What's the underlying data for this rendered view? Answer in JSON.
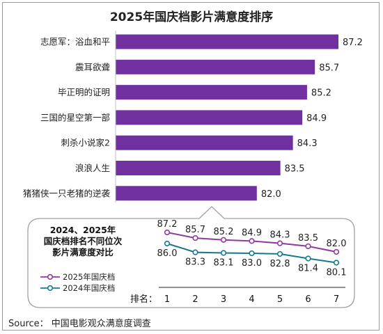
{
  "title": "2025年国庆档影片满意度排序",
  "source": "Source：  中国电影观众满意度调查",
  "colors": {
    "bar": "#7030a0",
    "series_2025": "#8b3a9e",
    "series_2024": "#137a8c",
    "callout_border": "#a0a0a0",
    "axis": "#222222"
  },
  "chart_data": [
    {
      "type": "bar",
      "orientation": "horizontal",
      "title": "2025年国庆档影片满意度排序",
      "categories": [
        "志愿军：浴血和平",
        "震耳欲聋",
        "毕正明的证明",
        "三国的星空第一部",
        "刺杀小说家2",
        "浪浪人生",
        "猪猪侠一只老猪的逆袭"
      ],
      "values": [
        87.2,
        85.7,
        85.2,
        84.9,
        84.3,
        83.5,
        82.0
      ],
      "value_labels": [
        "87.2",
        "85.7",
        "85.2",
        "84.9",
        "84.3",
        "83.5",
        "82.0"
      ],
      "xlim": [
        73,
        87.2
      ]
    },
    {
      "type": "line",
      "title": "2024、2025年国庆档排名不同位次影片满意度对比",
      "title_lines": [
        "2024、2025年",
        "国庆档排名不同位次",
        "影片满意度对比"
      ],
      "xlabel": "排名：",
      "x": [
        "1",
        "2",
        "3",
        "4",
        "5",
        "6",
        "7"
      ],
      "series": [
        {
          "name": "2025年国庆档",
          "values": [
            87.2,
            85.7,
            85.2,
            84.9,
            84.3,
            83.5,
            82.0
          ],
          "labels": [
            "87.2",
            "85.7",
            "85.2",
            "84.9",
            "84.3",
            "83.5",
            "82.0"
          ]
        },
        {
          "name": "2024年国庆档",
          "values": [
            86.0,
            83.3,
            83.1,
            83.0,
            82.8,
            81.4,
            80.1
          ],
          "labels": [
            "86.0",
            "83.3",
            "83.1",
            "83.0",
            "82.8",
            "81.4",
            "80.1"
          ]
        }
      ],
      "legend": "left",
      "grid": false
    }
  ]
}
